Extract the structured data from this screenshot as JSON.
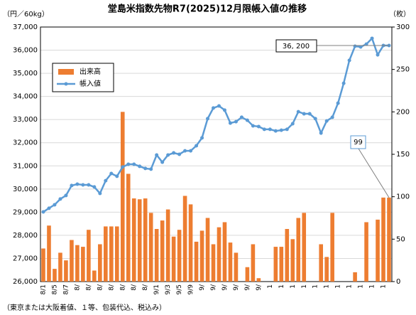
{
  "chart_data": {
    "type": "bar-line",
    "title": "堂島米指数先物R7(2025)12月限帳入値の推移",
    "y_label": "（円／60kg）",
    "y2_label": "（枚）",
    "footnote": "（東京または大阪着値、１等、包装代込、税込み）",
    "categories": [
      "8/1",
      null,
      "8/5",
      null,
      "8/7",
      null,
      "8/",
      null,
      "8/",
      null,
      "8/",
      null,
      "8/",
      null,
      "8/",
      null,
      "8/",
      null,
      "8/",
      null,
      "9/1",
      null,
      "9/3",
      null,
      "9/5",
      null,
      "9/9",
      null,
      "9/",
      null,
      "9/",
      null,
      "9/",
      null,
      "9/",
      null,
      "9/",
      null,
      "9/",
      null,
      "1",
      null,
      "1",
      null,
      "1",
      null,
      "1",
      null,
      "1",
      null,
      "1",
      null,
      "1",
      null,
      "1",
      null,
      "1",
      null,
      "1",
      null,
      "1",
      null
    ],
    "ylim": [
      26000,
      37000
    ],
    "yticks": [
      {
        "value": 26000,
        "label": "26,000"
      },
      {
        "value": 27000,
        "label": "27,000"
      },
      {
        "value": 28000,
        "label": "28,000"
      },
      {
        "value": 29000,
        "label": "29,000"
      },
      {
        "value": 30000,
        "label": "30,000"
      },
      {
        "value": 31000,
        "label": "31,000"
      },
      {
        "value": 32000,
        "label": "32,000"
      },
      {
        "value": 33000,
        "label": "33,000"
      },
      {
        "value": 34000,
        "label": "34,000"
      },
      {
        "value": 35000,
        "label": "35,000"
      },
      {
        "value": 36000,
        "label": "36,000"
      },
      {
        "value": 37000,
        "label": "37,000"
      }
    ],
    "y2lim": [
      0,
      300
    ],
    "y2ticks": [
      0,
      50,
      100,
      150,
      200,
      250,
      300
    ],
    "grid": true,
    "legend": "upper-left",
    "series": [
      {
        "name": "出来高",
        "type": "bar",
        "axis": "y2",
        "color": "#ED7D31",
        "values": [
          39,
          66,
          15,
          34,
          25,
          49,
          43,
          41,
          61,
          13,
          44,
          65,
          65,
          65,
          200,
          127,
          98,
          97,
          98,
          81,
          62,
          72,
          85,
          53,
          61,
          101,
          91,
          47,
          60,
          75,
          44,
          64,
          70,
          46,
          34,
          0,
          17,
          44,
          4,
          0,
          0,
          41,
          41,
          62,
          50,
          75,
          81,
          0,
          0,
          44,
          29,
          81,
          0,
          0,
          0,
          11,
          0,
          70,
          0,
          73,
          99,
          99
        ]
      },
      {
        "name": "帳入値",
        "type": "line",
        "color": "#5B9BD5",
        "values": [
          29010,
          29170,
          29320,
          29570,
          29720,
          30150,
          30210,
          30180,
          30180,
          30090,
          29810,
          30360,
          30670,
          30550,
          30950,
          31070,
          31070,
          30980,
          30890,
          30860,
          31470,
          31160,
          31470,
          31560,
          31500,
          31650,
          31650,
          31870,
          32210,
          33040,
          33500,
          33590,
          33410,
          32850,
          32910,
          33100,
          32970,
          32730,
          32700,
          32580,
          32580,
          32510,
          32540,
          32580,
          32820,
          33340,
          33250,
          33250,
          33040,
          32420,
          32940,
          33100,
          33710,
          34570,
          35560,
          36170,
          36140,
          36260,
          36510,
          35800,
          36200,
          36200
        ],
        "value_labels": [
          null,
          null,
          null,
          null,
          null,
          null,
          null,
          null,
          null,
          null,
          null,
          null,
          null,
          null,
          null,
          null,
          null,
          null,
          null,
          null,
          null,
          null,
          null,
          null,
          null,
          null,
          null,
          null,
          null,
          null,
          null,
          null,
          null,
          null,
          null,
          null,
          null,
          null,
          null,
          null,
          null,
          null,
          null,
          null,
          null,
          null,
          null,
          null,
          null,
          null,
          null,
          null,
          null,
          null,
          null,
          null,
          null,
          null,
          null,
          null,
          null,
          "36, 200"
        ]
      }
    ]
  }
}
